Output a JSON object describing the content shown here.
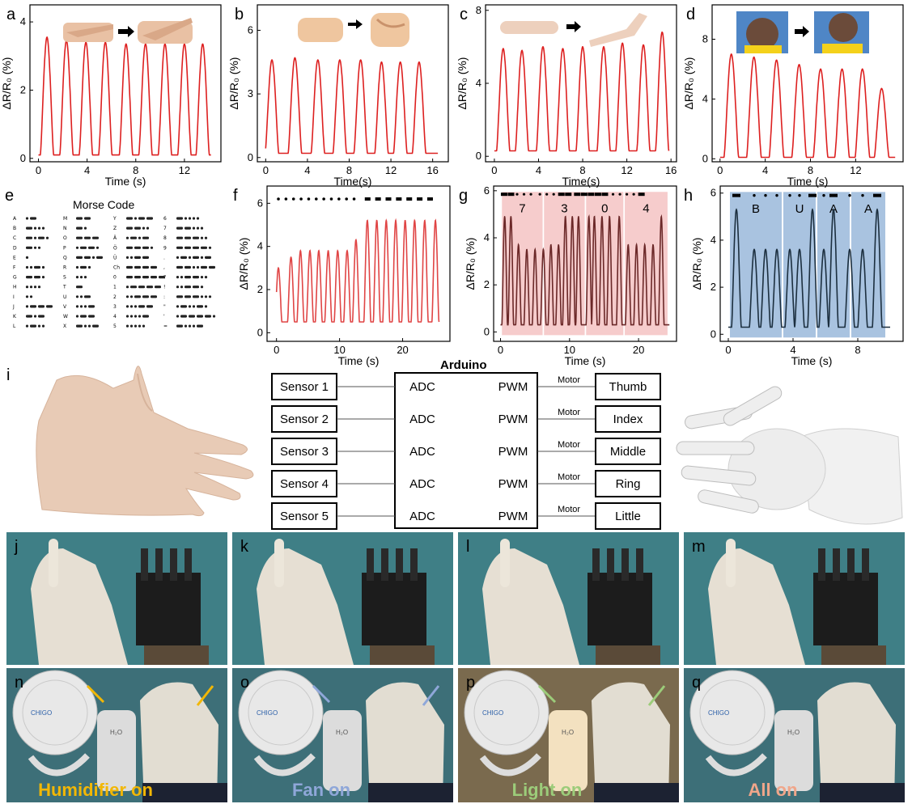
{
  "panels": {
    "labels": [
      "a",
      "b",
      "c",
      "d",
      "e",
      "f",
      "g",
      "h",
      "i",
      "j",
      "k",
      "l",
      "m",
      "n",
      "o",
      "p",
      "q"
    ]
  },
  "chart_data": [
    {
      "type": "line",
      "panel": "a",
      "xlabel": "Time (s)",
      "ylabel": "ΔR/R₀ (%)",
      "xlim": [
        -0.7,
        15
      ],
      "ylim": [
        -0.1,
        4.5
      ],
      "xticks": [
        0,
        4,
        8,
        12
      ],
      "yticks": [
        0,
        2,
        4
      ],
      "color": "#dd2020",
      "peaks": [
        0.7,
        2.3,
        3.9,
        5.5,
        7.2,
        8.8,
        10.4,
        12.0,
        13.5
      ],
      "peak_values": [
        3.55,
        3.45,
        3.4,
        3.4,
        3.35,
        3.35,
        3.35,
        3.35,
        3.35
      ],
      "baseline": 0.1,
      "width": 0.55,
      "x_end": 14.2
    },
    {
      "type": "line",
      "panel": "b",
      "xlabel": "Time(s)",
      "ylabel": "ΔR/R₀ (%)",
      "xlim": [
        -0.8,
        17.5
      ],
      "ylim": [
        -0.2,
        7.2
      ],
      "xticks": [
        0,
        4,
        8,
        12,
        16
      ],
      "yticks": [
        0,
        3,
        6
      ],
      "color": "#dd2020",
      "peaks": [
        0.6,
        2.8,
        5.0,
        7.1,
        9.1,
        11.1,
        12.9,
        14.7
      ],
      "peak_values": [
        4.6,
        4.7,
        4.6,
        4.6,
        4.6,
        4.5,
        4.5,
        4.5
      ],
      "baseline": 0.2,
      "width": 0.65,
      "x_end": 16.5
    },
    {
      "type": "line",
      "panel": "c",
      "xlabel": "Time(s)",
      "ylabel": "ΔR/R₀ (%)",
      "xlim": [
        -0.8,
        16.5
      ],
      "ylim": [
        -0.3,
        8.3
      ],
      "xticks": [
        0,
        4,
        8,
        12,
        16
      ],
      "yticks": [
        0,
        4,
        8
      ],
      "color": "#dd2020",
      "peaks": [
        0.8,
        2.5,
        4.4,
        6.2,
        8.0,
        9.9,
        11.6,
        13.5,
        15.2
      ],
      "peak_values": [
        5.9,
        5.8,
        6.0,
        5.9,
        6.0,
        6.0,
        6.2,
        6.1,
        6.8
      ],
      "baseline": 0.3,
      "width": 0.6,
      "x_end": 15.8
    },
    {
      "type": "line",
      "panel": "d",
      "xlabel": "Time (s)",
      "ylabel": "ΔR/R₀ (%)",
      "xlim": [
        -0.7,
        16.2
      ],
      "ylim": [
        -0.2,
        10.3
      ],
      "xticks": [
        0,
        4,
        8,
        12
      ],
      "yticks": [
        0,
        4,
        8
      ],
      "color": "#dd2020",
      "peaks": [
        1.0,
        3.0,
        5.0,
        7.0,
        8.9,
        10.8,
        12.6,
        14.3
      ],
      "peak_values": [
        7.0,
        6.8,
        6.6,
        6.3,
        6.0,
        6.0,
        6.0,
        4.7
      ],
      "baseline": 0.1,
      "width": 0.65,
      "x_end": 15.5
    },
    {
      "type": "line",
      "panel": "f",
      "xlabel": "Time (s)",
      "ylabel": "ΔR/R₀ (%)",
      "xlim": [
        -1.5,
        27.5
      ],
      "ylim": [
        -0.4,
        6.8
      ],
      "xticks": [
        0,
        10,
        20
      ],
      "yticks": [
        0,
        2,
        4,
        6
      ],
      "color": "#e04545",
      "peaks": [
        0.3,
        2.3,
        3.8,
        5.3,
        6.7,
        8.2,
        9.7,
        11.2,
        12.6,
        14.4,
        15.9,
        17.4,
        18.9,
        20.4,
        21.9,
        23.5,
        25.2
      ],
      "peak_values": [
        3.0,
        3.5,
        3.8,
        3.8,
        3.8,
        3.8,
        3.8,
        3.8,
        4.3,
        5.2,
        5.2,
        5.2,
        5.2,
        5.2,
        5.2,
        5.2,
        5.2
      ],
      "baseline": 0.5,
      "width": 0.55,
      "x_end": 25.8,
      "symbols": "dots x11, dashes x7 along y≈6.2"
    },
    {
      "type": "line",
      "panel": "g",
      "xlabel": "Time (s)",
      "ylabel": "ΔR/R₀ (%)",
      "xlim": [
        -1,
        25.5
      ],
      "ylim": [
        -0.4,
        6.2
      ],
      "xticks": [
        0,
        10,
        20
      ],
      "yticks": [
        0,
        2,
        4,
        6
      ],
      "color": "#6b2828",
      "peaks": [
        0.6,
        1.5,
        2.6,
        3.8,
        5.0,
        6.2,
        7.3,
        8.4,
        9.4,
        10.4,
        11.3,
        12.8,
        13.6,
        14.7,
        15.8,
        17.2,
        18.5,
        19.7,
        20.9,
        22.1,
        23.3
      ],
      "peak_values": [
        4.9,
        4.9,
        3.7,
        3.5,
        3.5,
        3.5,
        3.7,
        3.7,
        4.9,
        4.9,
        4.9,
        4.9,
        4.9,
        4.9,
        4.9,
        4.9,
        3.7,
        3.7,
        3.7,
        3.7,
        4.9
      ],
      "baseline": 0.3,
      "width": 0.4,
      "x_end": 24.5,
      "regions": [
        {
          "label": "7",
          "x0": 0.2,
          "x1": 6.1
        },
        {
          "label": "3",
          "x0": 6.3,
          "x1": 12.2
        },
        {
          "label": "0",
          "x0": 12.4,
          "x1": 17.8
        },
        {
          "label": "4",
          "x0": 18.0,
          "x1": 24.2
        }
      ]
    },
    {
      "type": "line",
      "panel": "h",
      "xlabel": "Time (s)",
      "ylabel": "ΔR/R₀ (%)",
      "xlim": [
        -0.5,
        10.8
      ],
      "ylim": [
        -0.3,
        6.3
      ],
      "xticks": [
        0,
        4,
        8
      ],
      "yticks": [
        0,
        2,
        4,
        6
      ],
      "color": "#1c2f3f",
      "peaks": [
        0.5,
        1.6,
        2.3,
        3.0,
        3.8,
        4.4,
        5.2,
        5.9,
        6.5,
        7.5,
        8.3,
        9.2
      ],
      "peak_values": [
        5.3,
        3.6,
        3.6,
        3.6,
        3.6,
        3.6,
        5.3,
        3.6,
        5.3,
        3.6,
        3.6,
        5.3
      ],
      "baseline": 0.3,
      "width": 0.3,
      "x_end": 10.0,
      "regions": [
        {
          "label": "B",
          "x0": 0.1,
          "x1": 3.3
        },
        {
          "label": "U",
          "x0": 3.4,
          "x1": 5.4
        },
        {
          "label": "A",
          "x0": 5.5,
          "x1": 7.5
        },
        {
          "label": "A",
          "x0": 7.6,
          "x1": 9.7
        }
      ]
    }
  ],
  "morse": {
    "title": "Morse Code",
    "col1": [
      [
        "A",
        ".-"
      ],
      [
        "B",
        "-..."
      ],
      [
        "C",
        "-.-."
      ],
      [
        "D",
        "-.."
      ],
      [
        "E",
        "."
      ],
      [
        "F",
        "..-."
      ],
      [
        "G",
        "--."
      ],
      [
        "H",
        "...."
      ],
      [
        "I",
        ".."
      ],
      [
        "J",
        ".---"
      ],
      [
        "K",
        "-.-"
      ],
      [
        "L",
        ".-.."
      ]
    ],
    "col2": [
      [
        "M",
        "--"
      ],
      [
        "N",
        "-."
      ],
      [
        "O",
        "---"
      ],
      [
        "P",
        ".--."
      ],
      [
        "Q",
        "--.-"
      ],
      [
        "R",
        ".-."
      ],
      [
        "S",
        "..."
      ],
      [
        "T",
        "-"
      ],
      [
        "U",
        "..-"
      ],
      [
        "V",
        "...-"
      ],
      [
        "W",
        ".--"
      ],
      [
        "X",
        "-..-"
      ]
    ],
    "col3": [
      [
        "Y",
        "-.--"
      ],
      [
        "Z",
        "--.."
      ],
      [
        "Ä",
        ".-.-"
      ],
      [
        "Ö",
        "---."
      ],
      [
        "Ü",
        "..--"
      ],
      [
        "Ch",
        "----"
      ],
      [
        "0",
        "-----"
      ],
      [
        "1",
        ".----"
      ],
      [
        "2",
        "..---"
      ],
      [
        "3",
        "...--"
      ],
      [
        "4",
        "....-"
      ],
      [
        "5",
        "....."
      ]
    ],
    "col4": [
      [
        "6",
        "-...."
      ],
      [
        "7",
        "--..."
      ],
      [
        "8",
        "---.."
      ],
      [
        "9",
        "----."
      ],
      [
        ".",
        ".-.-.-"
      ],
      [
        ",",
        "--..--"
      ],
      [
        "?",
        "..--.."
      ],
      [
        "!",
        "..--."
      ],
      [
        ":",
        "---..."
      ],
      [
        "\"",
        ".-..-."
      ],
      [
        "'",
        ".----."
      ],
      [
        "=",
        "-...-"
      ]
    ]
  },
  "diagram": {
    "title": "Arduino",
    "sensors": [
      "Sensor 1",
      "Sensor 2",
      "Sensor 3",
      "Sensor 4",
      "Sensor 5"
    ],
    "adc": "ADC",
    "pwm": "PWM",
    "motor": "Motor",
    "fingers": [
      "Thumb",
      "Index",
      "Middle",
      "Ring",
      "Little"
    ]
  },
  "captions": {
    "n": "Humidifier on",
    "o": "Fan on",
    "p": "Light on",
    "q": "All on"
  },
  "colors": {
    "n": "#f2b705",
    "o": "#8fa7d9",
    "p": "#9ccc7a",
    "q": "#f0a68a",
    "region_red": "#f6cccc",
    "region_blue": "#a9c3e0",
    "photo_bg": "#3f7f86"
  },
  "humidifier_label": "H₂O",
  "fan_brand": "CHIGO"
}
